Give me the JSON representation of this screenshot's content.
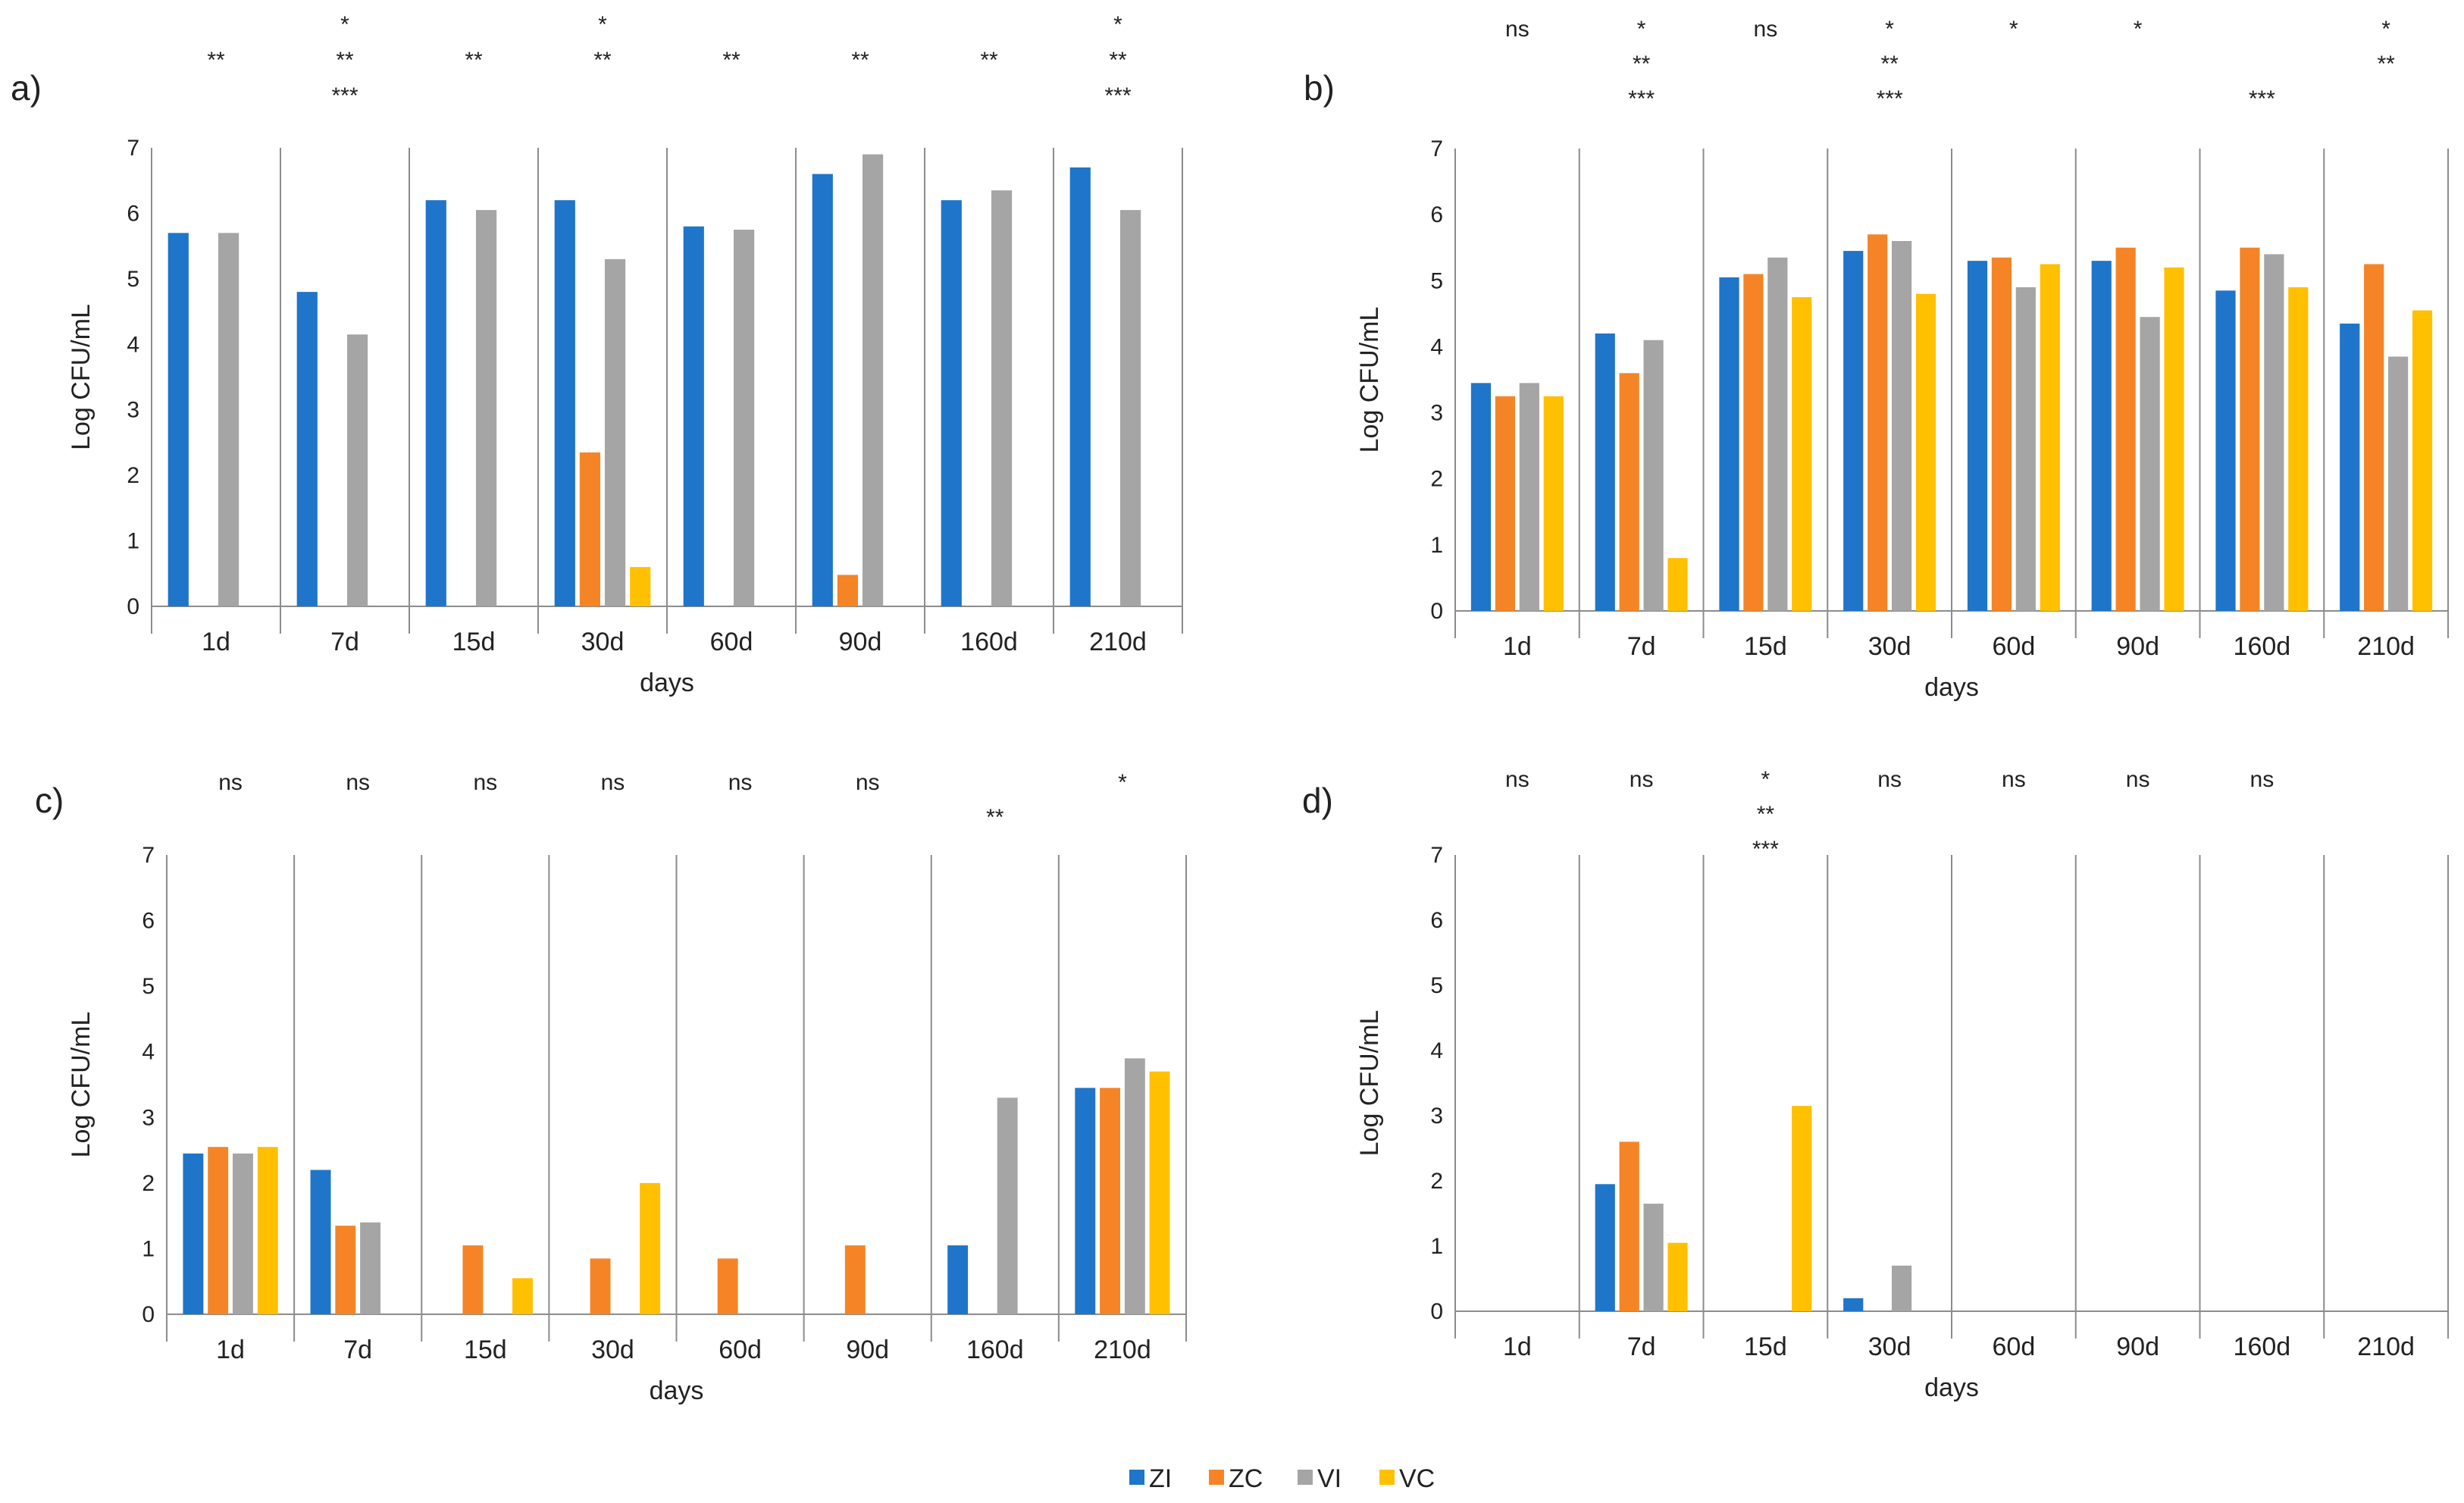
{
  "figure": {
    "series_colors": {
      "ZI": "#1F75C9",
      "ZC": "#F58426",
      "VI": "#A5A5A5",
      "VC": "#FFC000"
    },
    "legend": [
      {
        "key": "ZI",
        "label": "ZI",
        "color": "#1F75C9"
      },
      {
        "key": "ZC",
        "label": "ZC",
        "color": "#F58426"
      },
      {
        "key": "VI",
        "label": "VI",
        "color": "#A5A5A5"
      },
      {
        "key": "VC",
        "label": "VC",
        "color": "#FFC000"
      }
    ]
  },
  "chart_data": [
    {
      "panel": "a)",
      "type": "bar",
      "categories": [
        "1d",
        "7d",
        "15d",
        "30d",
        "60d",
        "90d",
        "160d",
        "210d"
      ],
      "xlabel": "days",
      "ylabel": "Log  CFU/mL",
      "ylim": [
        0,
        7
      ],
      "yticks": [
        "0",
        "1",
        "2",
        "3",
        "4",
        "5",
        "6",
        "7"
      ],
      "series": [
        {
          "name": "ZI",
          "values": [
            5.7,
            4.8,
            6.2,
            6.2,
            5.8,
            6.6,
            6.2,
            6.7
          ]
        },
        {
          "name": "ZC",
          "values": [
            0,
            0,
            0,
            2.35,
            0,
            0.48,
            0,
            0
          ]
        },
        {
          "name": "VI",
          "values": [
            5.7,
            4.15,
            6.05,
            5.3,
            5.75,
            6.9,
            6.35,
            6.05
          ]
        },
        {
          "name": "VC",
          "values": [
            0,
            0,
            0,
            0.6,
            0,
            0,
            0,
            0
          ]
        }
      ],
      "significance": [
        [
          "",
          "**",
          ""
        ],
        [
          "*",
          "**",
          "***"
        ],
        [
          "",
          "**",
          ""
        ],
        [
          "*",
          "**",
          ""
        ],
        [
          "",
          "**",
          ""
        ],
        [
          "",
          "**",
          ""
        ],
        [
          "",
          "**",
          ""
        ],
        [
          "*",
          "**",
          "***"
        ]
      ]
    },
    {
      "panel": "b)",
      "type": "bar",
      "categories": [
        "1d",
        "7d",
        "15d",
        "30d",
        "60d",
        "90d",
        "160d",
        "210d"
      ],
      "xlabel": "days",
      "ylabel": "Log  CFU/mL",
      "ylim": [
        0,
        7
      ],
      "yticks": [
        "0",
        "1",
        "2",
        "3",
        "4",
        "5",
        "6",
        "7"
      ],
      "series": [
        {
          "name": "ZI",
          "values": [
            3.45,
            4.2,
            5.05,
            5.45,
            5.3,
            5.3,
            4.85,
            4.35
          ]
        },
        {
          "name": "ZC",
          "values": [
            3.25,
            3.6,
            5.1,
            5.7,
            5.35,
            5.5,
            5.5,
            5.25
          ]
        },
        {
          "name": "VI",
          "values": [
            3.45,
            4.1,
            5.35,
            5.6,
            4.9,
            4.45,
            5.4,
            3.85
          ]
        },
        {
          "name": "VC",
          "values": [
            3.25,
            0.8,
            4.75,
            4.8,
            5.25,
            5.2,
            4.9,
            4.55
          ]
        }
      ],
      "significance": [
        [
          "ns",
          "",
          ""
        ],
        [
          "*",
          "**",
          "***"
        ],
        [
          "ns",
          "",
          ""
        ],
        [
          "*",
          "**",
          "***"
        ],
        [
          "*",
          "",
          ""
        ],
        [
          "*",
          "",
          ""
        ],
        [
          "",
          "",
          "***"
        ],
        [
          "*",
          "**",
          ""
        ]
      ]
    },
    {
      "panel": "c)",
      "type": "bar",
      "categories": [
        "1d",
        "7d",
        "15d",
        "30d",
        "60d",
        "90d",
        "160d",
        "210d"
      ],
      "xlabel": "days",
      "ylabel": "Log  CFU/mL",
      "ylim": [
        0,
        7
      ],
      "yticks": [
        "0",
        "1",
        "2",
        "3",
        "4",
        "5",
        "6",
        "7"
      ],
      "series": [
        {
          "name": "ZI",
          "values": [
            2.45,
            2.2,
            0,
            0,
            0,
            0,
            1.05,
            3.45
          ]
        },
        {
          "name": "ZC",
          "values": [
            2.55,
            1.35,
            1.05,
            0.85,
            0.85,
            1.05,
            0,
            3.45
          ]
        },
        {
          "name": "VI",
          "values": [
            2.45,
            1.4,
            0,
            0,
            0,
            0,
            3.3,
            3.9
          ]
        },
        {
          "name": "VC",
          "values": [
            2.55,
            0,
            0.55,
            2.0,
            0,
            0,
            0,
            3.7
          ]
        }
      ],
      "significance": [
        [
          "ns",
          "",
          ""
        ],
        [
          "ns",
          "",
          ""
        ],
        [
          "ns",
          "",
          ""
        ],
        [
          "ns",
          "",
          ""
        ],
        [
          "ns",
          "",
          ""
        ],
        [
          "ns",
          "",
          ""
        ],
        [
          "",
          "**",
          ""
        ],
        [
          "*",
          "",
          ""
        ]
      ]
    },
    {
      "panel": "d)",
      "type": "bar",
      "categories": [
        "1d",
        "7d",
        "15d",
        "30d",
        "60d",
        "90d",
        "160d",
        "210d"
      ],
      "xlabel": "days",
      "ylabel": "Log  CFU/mL",
      "ylim": [
        0,
        7
      ],
      "yticks": [
        "0",
        "1",
        "2",
        "3",
        "4",
        "5",
        "6",
        "7"
      ],
      "series": [
        {
          "name": "ZI",
          "values": [
            0,
            1.95,
            0,
            0.2,
            0,
            0,
            0,
            0
          ]
        },
        {
          "name": "ZC",
          "values": [
            0,
            2.6,
            0,
            0,
            0,
            0,
            0,
            0
          ]
        },
        {
          "name": "VI",
          "values": [
            0,
            1.65,
            0,
            0.7,
            0,
            0,
            0,
            0
          ]
        },
        {
          "name": "VC",
          "values": [
            0,
            1.05,
            3.15,
            0,
            0,
            0,
            0,
            0
          ]
        }
      ],
      "significance": [
        [
          "ns",
          "",
          ""
        ],
        [
          "ns",
          "",
          ""
        ],
        [
          "*",
          "**",
          "***"
        ],
        [
          "ns",
          "",
          ""
        ],
        [
          "ns",
          "",
          ""
        ],
        [
          "ns",
          "",
          ""
        ],
        [
          "ns",
          "",
          ""
        ],
        [
          "",
          "",
          ""
        ]
      ]
    }
  ]
}
